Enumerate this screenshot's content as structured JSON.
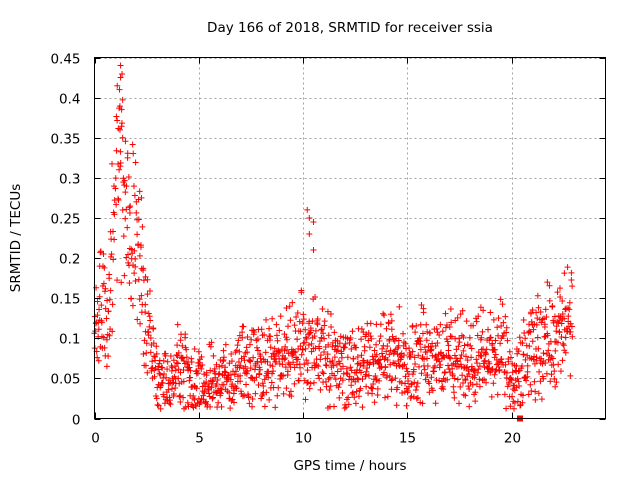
{
  "chart_data": {
    "type": "scatter",
    "title": "Day 166 of 2018, SRMTID for receiver ssia",
    "xlabel": "GPS time / hours",
    "ylabel": "SRMTID / TECUs",
    "xlim": [
      0,
      24.5
    ],
    "ylim": [
      0,
      0.45
    ],
    "xticks": [
      0,
      5,
      10,
      15,
      20
    ],
    "xtick_labels": [
      "0",
      "5",
      "10",
      "15",
      "20"
    ],
    "yticks": [
      0,
      0.05,
      0.1,
      0.15,
      0.2,
      0.25,
      0.3,
      0.35,
      0.4,
      0.45
    ],
    "ytick_labels": [
      "0",
      "0.05",
      "0.1",
      "0.15",
      "0.2",
      "0.25",
      "0.3",
      "0.35",
      "0.4",
      "0.45"
    ],
    "grid": true,
    "marker": "plus",
    "color": "#ff0000",
    "gap_marker": {
      "x": 20.4,
      "y": 0
    },
    "series_profile": [
      {
        "x": 0.0,
        "y": 0.1
      },
      {
        "x": 0.3,
        "y": 0.14
      },
      {
        "x": 0.7,
        "y": 0.13
      },
      {
        "x": 1.0,
        "y": 0.3
      },
      {
        "x": 1.3,
        "y": 0.32
      },
      {
        "x": 1.6,
        "y": 0.24
      },
      {
        "x": 2.0,
        "y": 0.22
      },
      {
        "x": 2.3,
        "y": 0.17
      },
      {
        "x": 2.6,
        "y": 0.1
      },
      {
        "x": 3.0,
        "y": 0.06
      },
      {
        "x": 3.5,
        "y": 0.05
      },
      {
        "x": 4.0,
        "y": 0.06
      },
      {
        "x": 5.0,
        "y": 0.04
      },
      {
        "x": 6.0,
        "y": 0.045
      },
      {
        "x": 7.0,
        "y": 0.06
      },
      {
        "x": 8.0,
        "y": 0.07
      },
      {
        "x": 9.0,
        "y": 0.075
      },
      {
        "x": 10.0,
        "y": 0.1
      },
      {
        "x": 10.5,
        "y": 0.1
      },
      {
        "x": 11.0,
        "y": 0.08
      },
      {
        "x": 12.0,
        "y": 0.055
      },
      {
        "x": 13.0,
        "y": 0.065
      },
      {
        "x": 14.0,
        "y": 0.08
      },
      {
        "x": 15.0,
        "y": 0.07
      },
      {
        "x": 16.0,
        "y": 0.085
      },
      {
        "x": 17.0,
        "y": 0.075
      },
      {
        "x": 18.0,
        "y": 0.075
      },
      {
        "x": 19.0,
        "y": 0.08
      },
      {
        "x": 19.6,
        "y": 0.08
      },
      {
        "x": 20.0,
        "y": 0.05
      },
      {
        "x": 20.2,
        "y": 0.04
      },
      {
        "x": 20.6,
        "y": 0.07
      },
      {
        "x": 21.0,
        "y": 0.08
      },
      {
        "x": 21.5,
        "y": 0.1
      },
      {
        "x": 22.0,
        "y": 0.1
      },
      {
        "x": 22.5,
        "y": 0.11
      },
      {
        "x": 22.9,
        "y": 0.13
      }
    ],
    "outliers": [
      {
        "x": 1.25,
        "y": 0.44
      },
      {
        "x": 1.25,
        "y": 0.425
      },
      {
        "x": 1.2,
        "y": 0.41
      },
      {
        "x": 1.3,
        "y": 0.385
      },
      {
        "x": 1.35,
        "y": 0.35
      },
      {
        "x": 10.2,
        "y": 0.26
      },
      {
        "x": 10.3,
        "y": 0.25
      },
      {
        "x": 10.5,
        "y": 0.245
      },
      {
        "x": 10.3,
        "y": 0.23
      },
      {
        "x": 10.5,
        "y": 0.21
      },
      {
        "x": 0.25,
        "y": 0.19
      },
      {
        "x": 22.9,
        "y": 0.165
      },
      {
        "x": 2.25,
        "y": 0.275
      }
    ]
  }
}
